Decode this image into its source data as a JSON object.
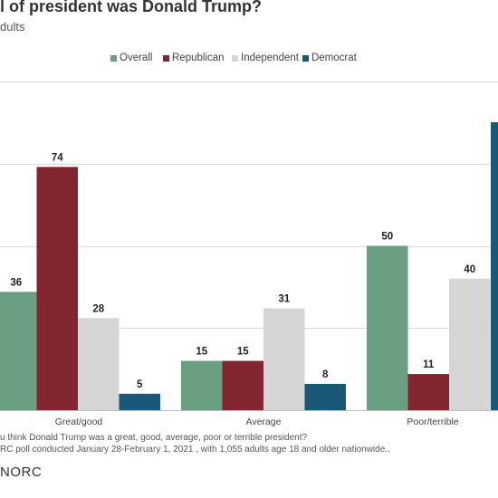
{
  "header": {
    "title": "l of president was Donald Trump?",
    "subtitle": "dults"
  },
  "footnotes": {
    "question": "u think Donald Trump was a great, good, average, poor or terrible president?",
    "source": "RC poll conducted January 28-February 1, 2021 , with 1,055 adults age 18 and older nationwide.."
  },
  "logo_text": "NORC",
  "colors": {
    "Overall": "#6a9f82",
    "Republican": "#812531",
    "Independent": "#d5d5d5",
    "Democrat": "#1a5878",
    "gridline": "#d9d9d9",
    "axis": "#bfbfbf"
  },
  "chart_data": {
    "type": "bar",
    "categories": [
      "Great/good",
      "Average",
      "Poor/terrible"
    ],
    "series": [
      {
        "name": "Overall",
        "values": [
          36,
          15,
          50
        ]
      },
      {
        "name": "Republican",
        "values": [
          74,
          15,
          11
        ]
      },
      {
        "name": "Independent",
        "values": [
          28,
          31,
          40
        ]
      },
      {
        "name": "Democrat",
        "values": [
          5,
          8,
          null
        ]
      }
    ],
    "ylim": [
      0,
      100
    ],
    "grid": true,
    "legend_position": "top"
  }
}
